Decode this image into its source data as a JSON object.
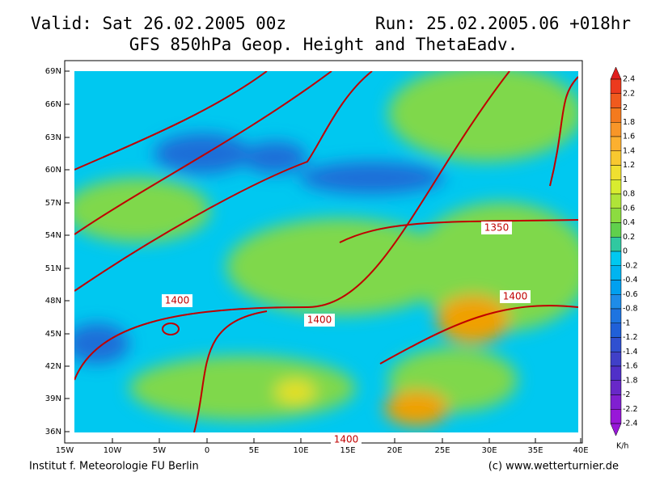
{
  "header": {
    "valid": "Valid: Sat 26.02.2005 00z",
    "run": "Run: 25.02.2005.06 +018hr",
    "title": "GFS 850hPa Geop. Height and ThetaEadv."
  },
  "map": {
    "lat_labels": [
      "69N",
      "66N",
      "63N",
      "60N",
      "57N",
      "54N",
      "51N",
      "48N",
      "45N",
      "42N",
      "39N",
      "36N"
    ],
    "lon_labels": [
      "15W",
      "10W",
      "5W",
      "0",
      "5E",
      "10E",
      "15E",
      "20E",
      "25E",
      "30E",
      "35E",
      "40E"
    ],
    "contour_labels": [
      "1350",
      "1400",
      "1400",
      "1400",
      "1400"
    ]
  },
  "colorbar": {
    "labels": [
      "2.4",
      "2.2",
      "2",
      "1.8",
      "1.6",
      "1.4",
      "1.2",
      "1",
      "0.8",
      "0.6",
      "0.4",
      "0.2",
      "0",
      "-0.2",
      "-0.4",
      "-0.6",
      "-0.8",
      "-1",
      "-1.2",
      "-1.4",
      "-1.6",
      "-1.8",
      "-2",
      "-2.2",
      "-2.4"
    ],
    "unit": "K/h"
  },
  "footer": {
    "left": "Institut f. Meteorologie  FU Berlin",
    "right": "(c) www.wetterturnier.de"
  }
}
